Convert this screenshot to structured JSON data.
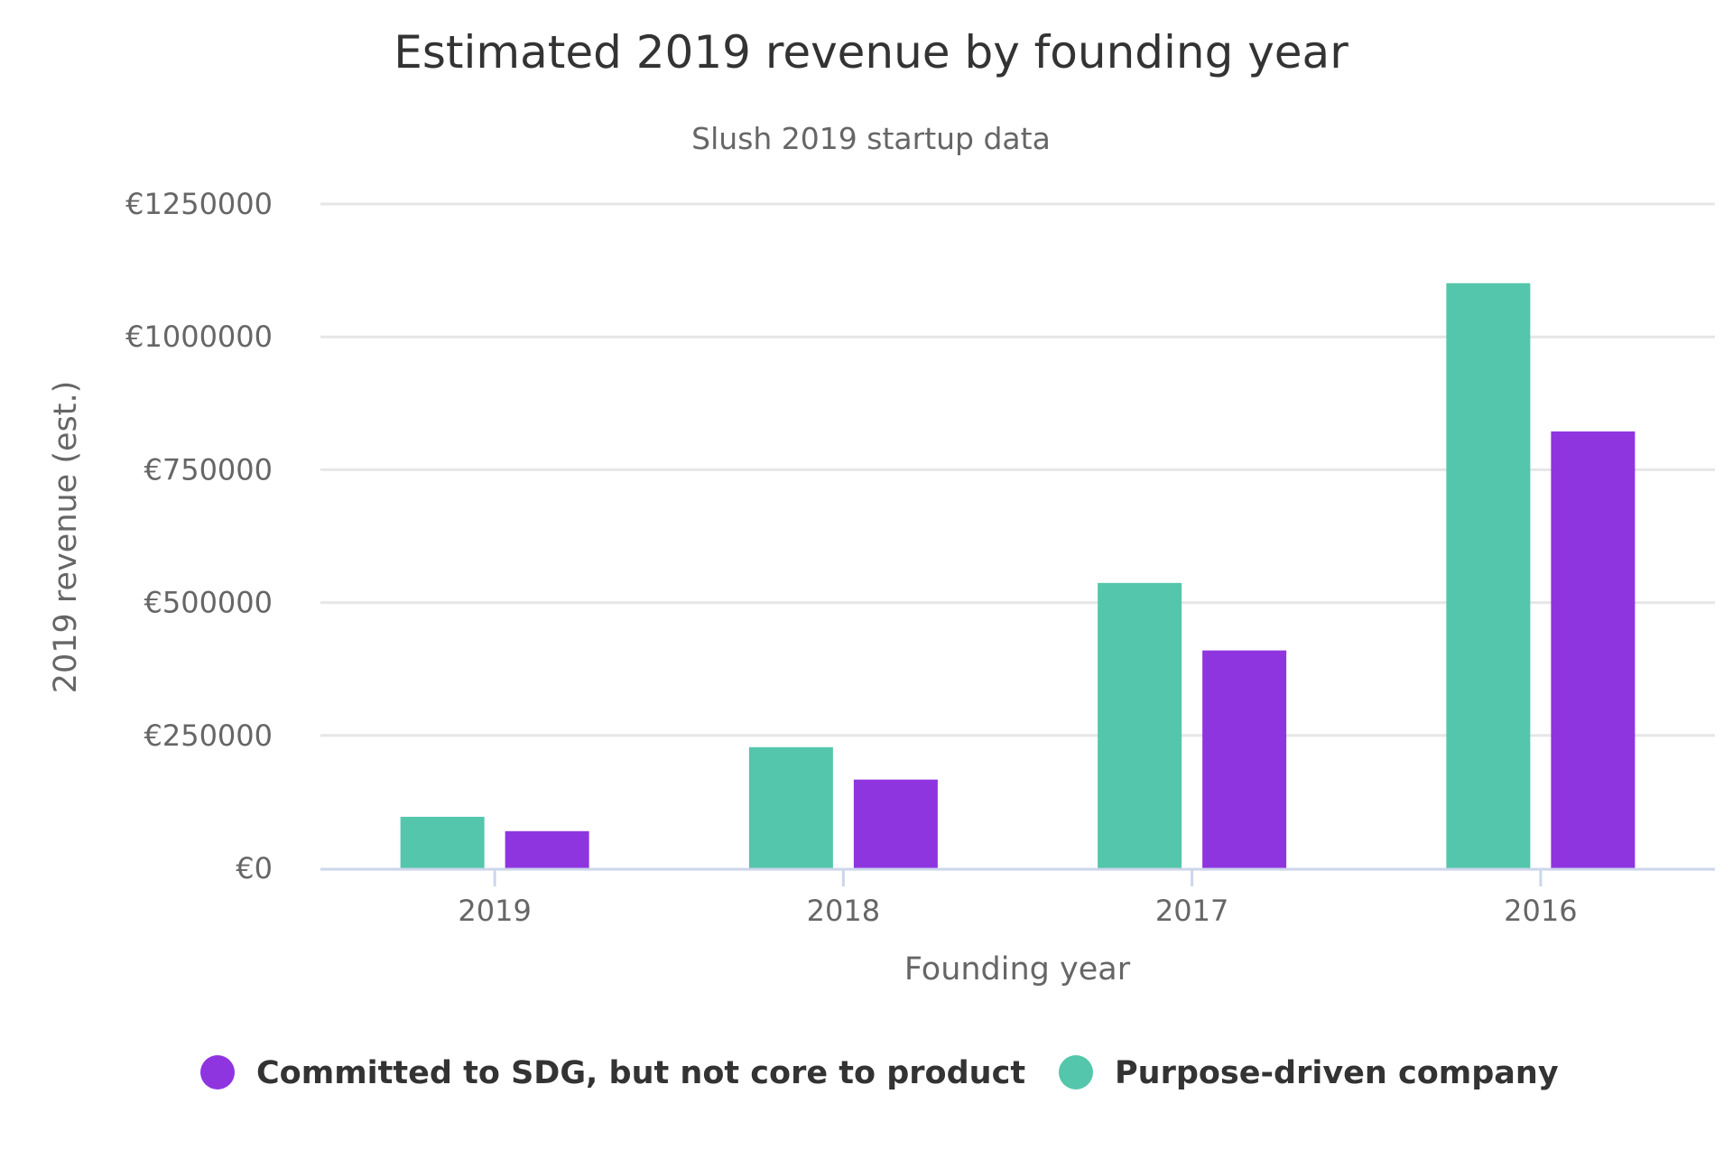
{
  "chart_data": {
    "type": "bar",
    "title": "Estimated 2019 revenue by founding year",
    "subtitle": "Slush 2019 startup data",
    "xlabel": "Founding year",
    "ylabel": "2019 revenue (est.)",
    "categories": [
      "2019",
      "2018",
      "2017",
      "2016"
    ],
    "ylim": [
      0,
      1250000
    ],
    "yticks": [
      0,
      250000,
      500000,
      750000,
      1000000,
      1250000
    ],
    "ytick_labels": [
      "€0",
      "€250000",
      "€500000",
      "€750000",
      "€1000000",
      "€1250000"
    ],
    "grid": true,
    "legend_position": "bottom",
    "series": [
      {
        "name": "Purpose-driven company",
        "color": "#54c6ab",
        "values": [
          97000,
          228000,
          537000,
          1101000
        ]
      },
      {
        "name": "Committed to SDG, but not core to product",
        "color": "#8f35e0",
        "values": [
          70000,
          167000,
          410000,
          822000
        ]
      }
    ],
    "legend_order": [
      1,
      0
    ]
  }
}
